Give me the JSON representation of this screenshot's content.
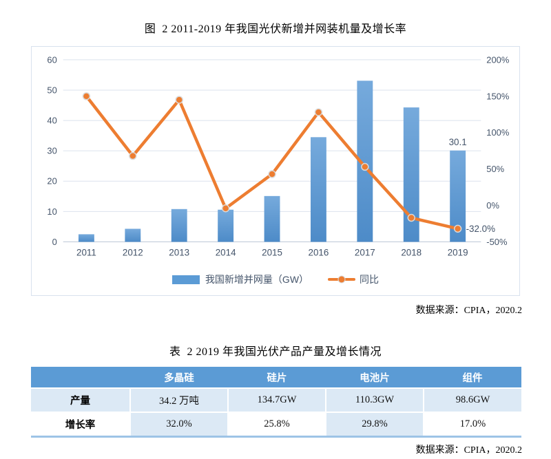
{
  "figure": {
    "title": "图  2 2011-2019 年我国光伏新增并网装机量及增长率",
    "source": "数据来源：CPIA，2020.2"
  },
  "chart_data": {
    "type": "bar+line combo",
    "title": "图 2 2011-2019 年我国光伏新增并网装机量及增长率",
    "categories": [
      "2011",
      "2012",
      "2013",
      "2014",
      "2015",
      "2016",
      "2017",
      "2018",
      "2019"
    ],
    "series": [
      {
        "name": "我国新增并网量（GW）",
        "type": "bar",
        "axis": "left",
        "values": [
          2.5,
          4.3,
          10.8,
          10.6,
          15.1,
          34.5,
          53.1,
          44.3,
          30.1
        ],
        "color": "#5B9BD5"
      },
      {
        "name": "同比",
        "type": "line",
        "axis": "right",
        "values": [
          150,
          68,
          145,
          -4,
          43,
          128,
          53,
          -17,
          -32
        ],
        "color": "#ED7D31"
      }
    ],
    "left_axis": {
      "min": 0,
      "max": 60,
      "ticks": [
        {
          "v": 0,
          "label": "0"
        },
        {
          "v": 10,
          "label": "10"
        },
        {
          "v": 20,
          "label": "20"
        },
        {
          "v": 30,
          "label": "30"
        },
        {
          "v": 40,
          "label": "40"
        },
        {
          "v": 50,
          "label": "50"
        },
        {
          "v": 60,
          "label": "60"
        }
      ]
    },
    "right_axis": {
      "min": -50,
      "max": 200,
      "ticks": [
        {
          "v": -50,
          "label": "-50%"
        },
        {
          "v": 0,
          "label": "0%"
        },
        {
          "v": 50,
          "label": "50%"
        },
        {
          "v": 100,
          "label": "100%"
        },
        {
          "v": 150,
          "label": "150%"
        },
        {
          "v": 200,
          "label": "200%"
        }
      ]
    },
    "annotations": [
      {
        "series_index": 0,
        "point_index": 8,
        "text": "30.1"
      },
      {
        "series_index": 1,
        "point_index": 8,
        "text": "-32.0%"
      }
    ],
    "grid": true,
    "legend_position": "bottom"
  },
  "table_section": {
    "title": "表  2 2019 年我国光伏产品产量及增长情况",
    "source": "数据来源：CPIA，2020.2",
    "columns": [
      "",
      "多晶硅",
      "硅片",
      "电池片",
      "组件"
    ],
    "rows": [
      {
        "label": "产量",
        "cells": [
          "34.2 万吨",
          "134.7GW",
          "110.3GW",
          "98.6GW"
        ]
      },
      {
        "label": "增长率",
        "cells": [
          "32.0%",
          "25.8%",
          "29.8%",
          "17.0%"
        ]
      }
    ]
  },
  "colors": {
    "bar_blue": "#5B9BD5",
    "bar_gradient_top": "#76AADC",
    "bar_gradient_bottom": "#4D8BC8",
    "line_orange": "#ED7D31",
    "marker_ring": "#d9d9d9",
    "gridline": "#dbe2ee",
    "axis_text": "#44546A",
    "table_header_bg": "#5B9BD5",
    "table_band_bg": "#DCE9F5",
    "table_bottom_rule": "#9DC3E6"
  }
}
